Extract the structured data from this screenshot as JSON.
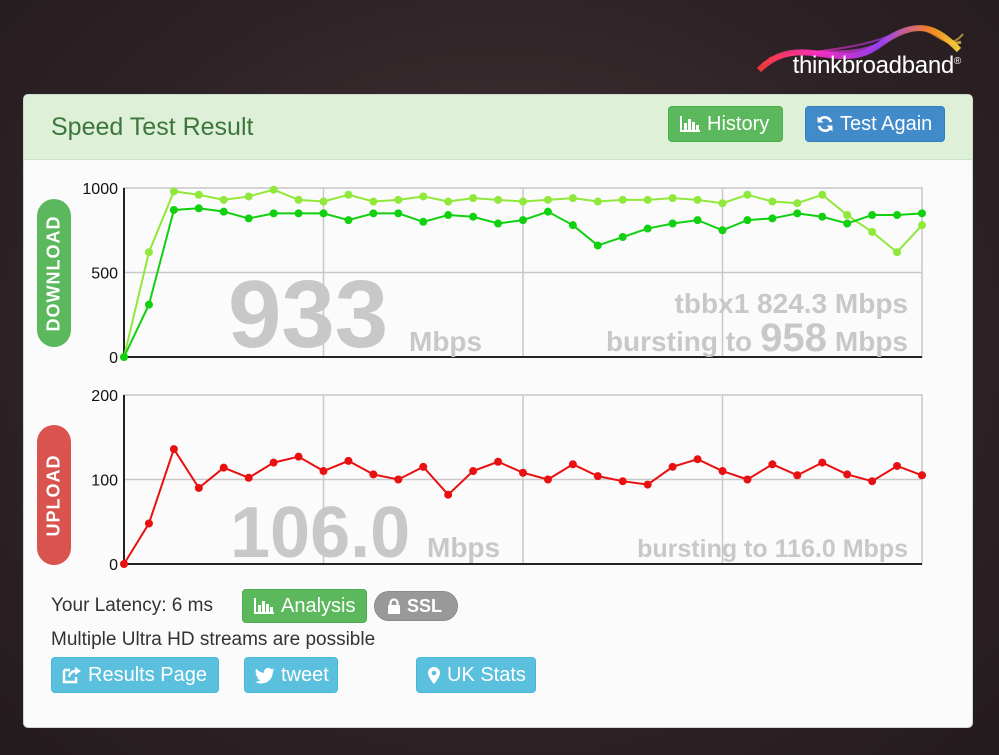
{
  "brand": {
    "logo_prefix": "think",
    "logo_suffix": "broadband",
    "logo_reg": "®"
  },
  "panel": {
    "title": "Speed Test Result"
  },
  "header_buttons": {
    "history_label": "History",
    "test_again_label": "Test Again"
  },
  "download": {
    "side_label": "DOWNLOAD",
    "speed_value": "933",
    "speed_unit": "Mbps",
    "profile_line": "tbbx1 824.3 Mbps",
    "burst_prefix": "bursting to",
    "burst_value": "958",
    "burst_unit": "Mbps"
  },
  "upload": {
    "side_label": "UPLOAD",
    "speed_value": "106.0",
    "speed_unit": "Mbps",
    "burst_line": "bursting to 116.0 Mbps"
  },
  "latency": {
    "label": "Your Latency: 6 ms"
  },
  "analysis_label": "Analysis",
  "ssl_label": "SSL",
  "streams_text": "Multiple Ultra HD streams are possible",
  "footer_buttons": {
    "results_label": "Results Page",
    "tweet_label": "tweet",
    "ukstats_label": "UK Stats"
  },
  "colors": {
    "download_light": "#90e83a",
    "download_dark": "#10d010",
    "upload": "#e81010",
    "grid": "#c8c8c8",
    "big_text": "#c8c8c8"
  },
  "chart_data": [
    {
      "type": "line",
      "ylim": [
        0,
        1000
      ],
      "y_ticks": [
        "0",
        "500",
        "1000"
      ],
      "grid": true,
      "x": [
        0,
        1,
        2,
        3,
        4,
        5,
        6,
        7,
        8,
        9,
        10,
        11,
        12,
        13,
        14,
        15,
        16,
        17,
        18,
        19,
        20,
        21,
        22,
        23,
        24,
        25,
        26,
        27,
        28,
        29,
        30,
        31,
        32
      ],
      "series": [
        {
          "color": "#90e83a",
          "values": [
            0,
            620,
            980,
            960,
            930,
            950,
            990,
            930,
            920,
            960,
            920,
            930,
            950,
            920,
            940,
            930,
            920,
            930,
            940,
            920,
            930,
            930,
            940,
            930,
            910,
            960,
            920,
            910,
            960,
            840,
            740,
            620,
            780
          ]
        },
        {
          "color": "#10d010",
          "values": [
            0,
            310,
            870,
            880,
            860,
            820,
            850,
            850,
            850,
            810,
            850,
            850,
            800,
            840,
            830,
            790,
            810,
            860,
            780,
            660,
            710,
            760,
            790,
            810,
            750,
            810,
            820,
            850,
            830,
            790,
            840,
            840,
            850
          ]
        }
      ]
    },
    {
      "type": "line",
      "ylim": [
        0,
        200
      ],
      "y_ticks": [
        "0",
        "100",
        "200"
      ],
      "grid": true,
      "x": [
        0,
        1,
        2,
        3,
        4,
        5,
        6,
        7,
        8,
        9,
        10,
        11,
        12,
        13,
        14,
        15,
        16,
        17,
        18,
        19,
        20,
        21,
        22,
        23,
        24,
        25,
        26,
        27,
        28,
        29,
        30,
        31,
        32
      ],
      "series": [
        {
          "color": "#e81010",
          "values": [
            0,
            48,
            136,
            90,
            114,
            102,
            120,
            127,
            110,
            122,
            106,
            100,
            115,
            82,
            110,
            121,
            108,
            100,
            118,
            104,
            98,
            94,
            115,
            124,
            110,
            100,
            118,
            105,
            120,
            106,
            98,
            116,
            105
          ]
        }
      ]
    }
  ]
}
